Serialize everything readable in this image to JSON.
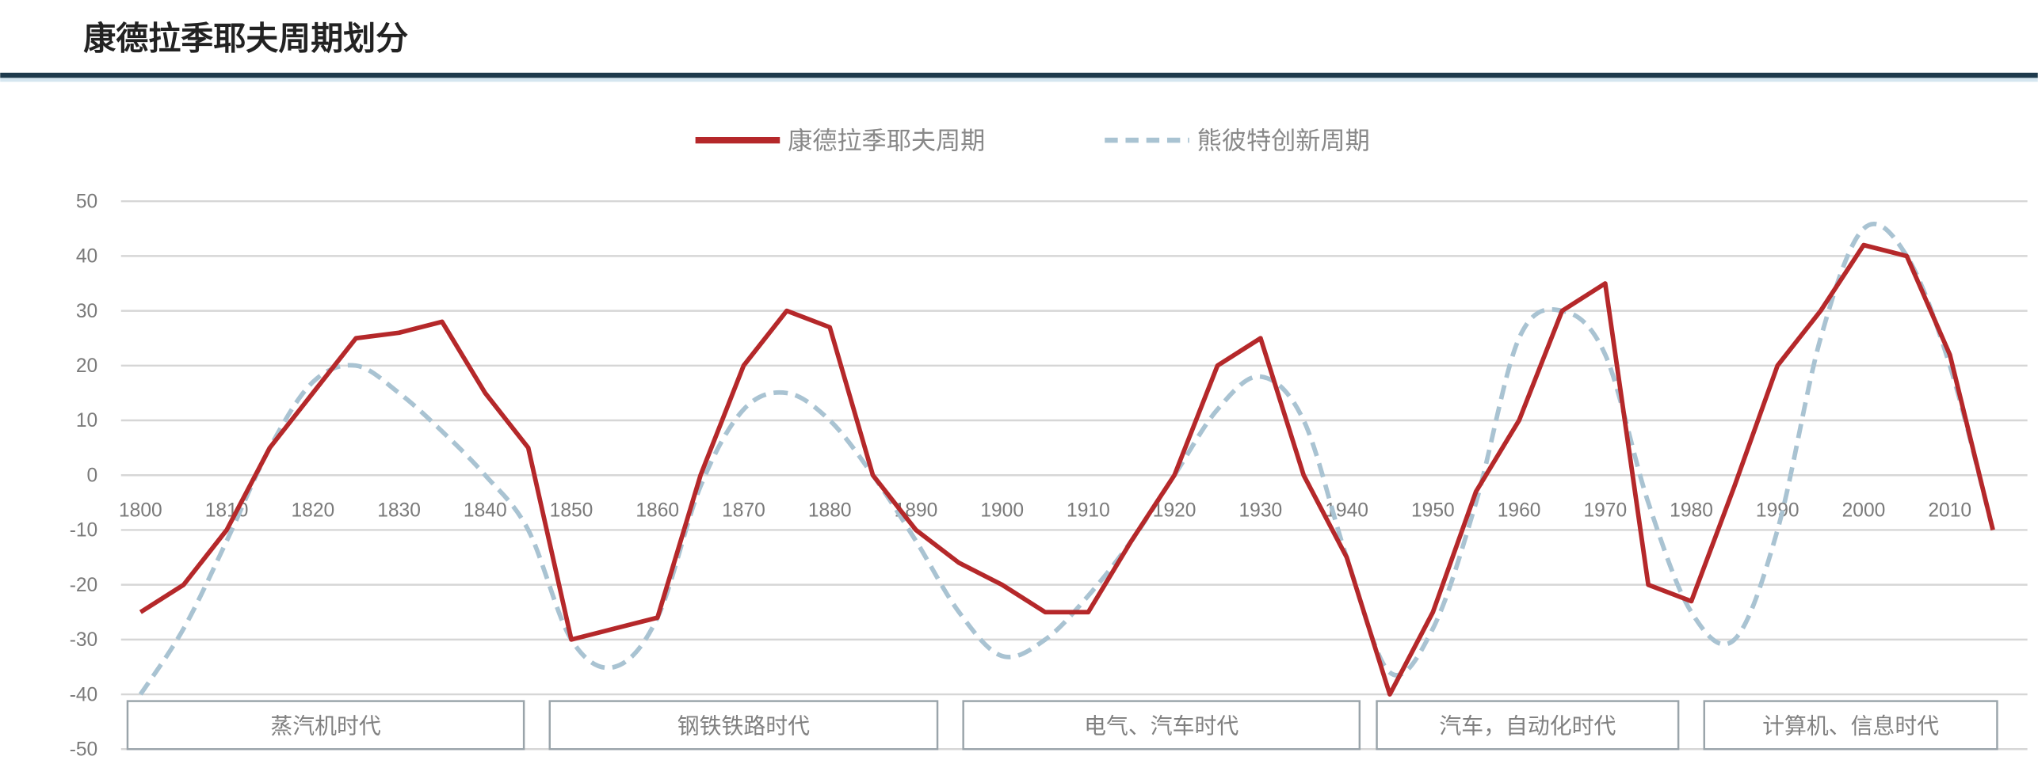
{
  "title": "康德拉季耶夫周期划分",
  "colors": {
    "kondratiev": "#b5282a",
    "schumpeter": "#a9c3d2",
    "header_rule": "#1e3a4c",
    "grid": "#d6d6d6"
  },
  "chart_data": {
    "type": "line",
    "title": "",
    "xlabel": "",
    "ylabel": "",
    "ylim": [
      -50,
      50
    ],
    "xlim": [
      1800,
      2015
    ],
    "yticks": [
      "50",
      "40",
      "30",
      "20",
      "10",
      "0",
      "-10",
      "-20",
      "-30",
      "-40",
      "-50"
    ],
    "xticks": [
      "1800",
      "1810",
      "1820",
      "1830",
      "1840",
      "1850",
      "1860",
      "1870",
      "1880",
      "1890",
      "1900",
      "1910",
      "1920",
      "1930",
      "1940",
      "1950",
      "1960",
      "1970",
      "1980",
      "1990",
      "2000",
      "2010"
    ],
    "grid": true,
    "legend_placement": "top-center",
    "x": [
      1800,
      1805,
      1810,
      1815,
      1820,
      1825,
      1830,
      1835,
      1840,
      1845,
      1850,
      1855,
      1860,
      1865,
      1870,
      1875,
      1880,
      1885,
      1890,
      1895,
      1900,
      1905,
      1910,
      1915,
      1920,
      1925,
      1930,
      1935,
      1940,
      1945,
      1950,
      1955,
      1960,
      1965,
      1970,
      1975,
      1980,
      1985,
      1990,
      1995,
      2000,
      2005,
      2010,
      2015
    ],
    "series": [
      {
        "name": "康德拉季耶夫周期",
        "style": "solid",
        "values": [
          -25,
          -20,
          -10,
          5,
          15,
          25,
          26,
          28,
          15,
          5,
          -30,
          -28,
          -26,
          0,
          20,
          30,
          27,
          0,
          -10,
          -16,
          -20,
          -25,
          -25,
          -12,
          0,
          20,
          25,
          0,
          -15,
          -40,
          -25,
          -3,
          10,
          30,
          35,
          -20,
          -23,
          -2,
          20,
          30,
          42,
          40,
          22,
          -10
        ]
      },
      {
        "name": "熊彼特创新周期",
        "style": "dashed",
        "values": [
          -40,
          -28,
          -12,
          5,
          17,
          20,
          15,
          8,
          0,
          -10,
          -30,
          -35,
          -26,
          -2,
          12,
          15,
          10,
          0,
          -12,
          -25,
          -33,
          -30,
          -22,
          -12,
          0,
          12,
          18,
          10,
          -15,
          -36,
          -28,
          -5,
          25,
          30,
          22,
          -5,
          -25,
          -30,
          -10,
          25,
          45,
          40,
          20,
          -10
        ]
      }
    ],
    "annotations": [
      {
        "label": "蒸汽机时代",
        "from": 1800,
        "to": 1846
      },
      {
        "label": "钢铁铁路时代",
        "from": 1849,
        "to": 1894
      },
      {
        "label": "电气、汽车时代",
        "from": 1897,
        "to": 1943
      },
      {
        "label": "汽车，自动化时代",
        "from": 1945,
        "to": 1980
      },
      {
        "label": "计算机、信息时代",
        "from": 1983,
        "to": 2017
      }
    ]
  }
}
